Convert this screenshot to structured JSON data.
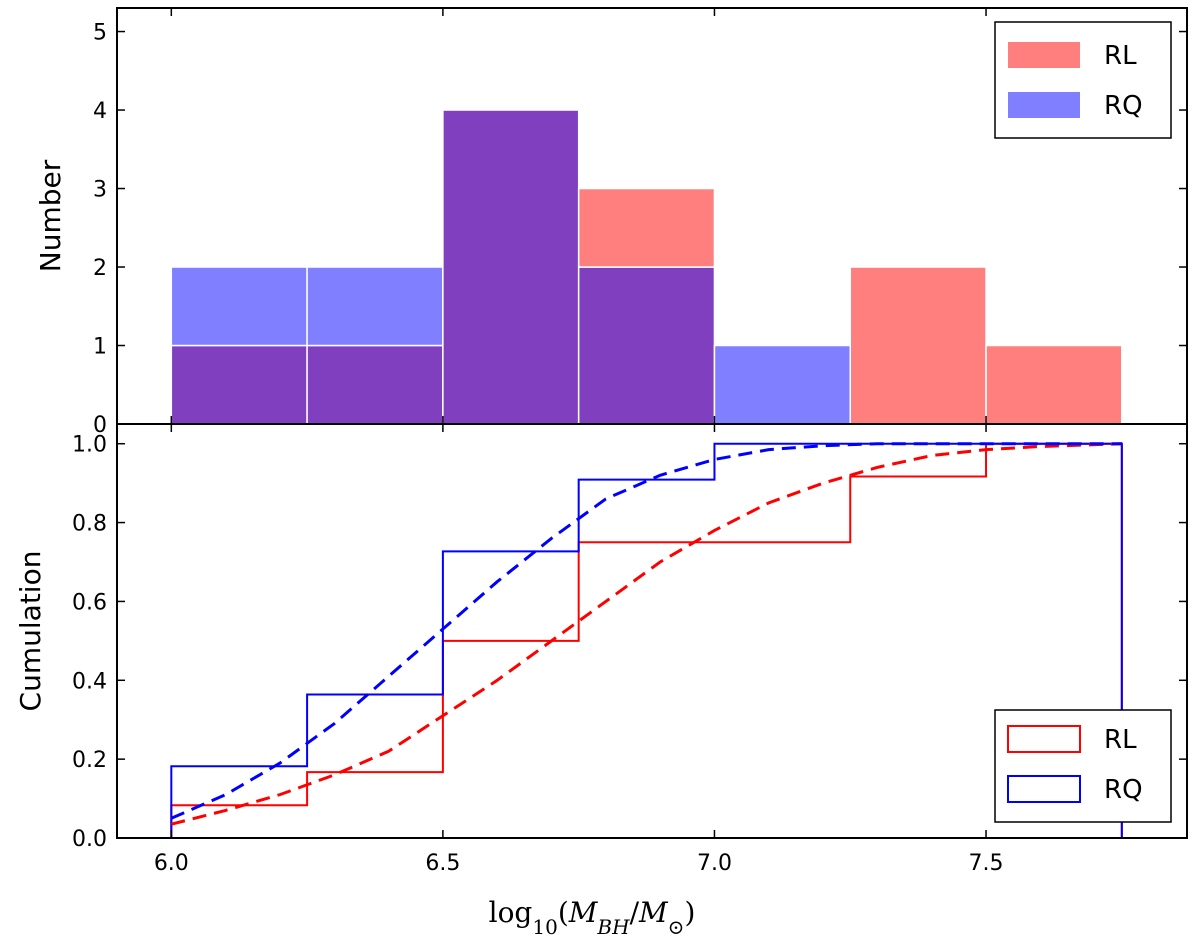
{
  "chart_data": [
    {
      "type": "bar",
      "panel": "top",
      "ylabel": "Number",
      "xlim": [
        5.9,
        7.87
      ],
      "ylim": [
        0,
        5.3
      ],
      "yticks": [
        "0",
        "1",
        "2",
        "3",
        "4",
        "5"
      ],
      "bin_edges": [
        6.0,
        6.25,
        6.5,
        6.75,
        7.0,
        7.25,
        7.5,
        7.75
      ],
      "series": [
        {
          "name": "RL",
          "color": "#ff7f7f",
          "values": [
            1,
            1,
            4,
            3,
            0,
            2,
            1
          ]
        },
        {
          "name": "RQ",
          "color": "#7f7fff",
          "values": [
            2,
            2,
            4,
            2,
            1,
            0,
            0
          ]
        }
      ],
      "overlap_color": "#7f3fbf",
      "legend": {
        "location": "top-right",
        "entries": [
          "RL",
          "RQ"
        ]
      }
    },
    {
      "type": "line",
      "panel": "bottom",
      "ylabel": "Cumulation",
      "xlabel": "log10(MBH/M⊙)",
      "xlim": [
        5.9,
        7.87
      ],
      "ylim": [
        0,
        1.05
      ],
      "xticks": [
        "6.0",
        "6.5",
        "7.0",
        "7.5"
      ],
      "yticks": [
        "0.0",
        "0.2",
        "0.4",
        "0.6",
        "0.8",
        "1.0"
      ],
      "series": [
        {
          "name": "RL",
          "color": "#ff0000",
          "style": "step",
          "bin_edges": [
            6.0,
            6.25,
            6.5,
            6.75,
            7.0,
            7.25,
            7.5,
            7.75
          ],
          "values": [
            0.083,
            0.167,
            0.5,
            0.75,
            0.75,
            0.917,
            1.0
          ]
        },
        {
          "name": "RQ",
          "color": "#0000ff",
          "style": "step",
          "bin_edges": [
            6.0,
            6.25,
            6.5,
            6.75,
            7.0,
            7.25,
            7.5,
            7.75
          ],
          "values": [
            0.182,
            0.364,
            0.727,
            0.909,
            1.0,
            1.0,
            1.0
          ]
        },
        {
          "name": "RL fit",
          "color": "#ff0000",
          "style": "dashed",
          "x": [
            6.0,
            6.1,
            6.2,
            6.3,
            6.4,
            6.5,
            6.6,
            6.7,
            6.8,
            6.9,
            7.0,
            7.1,
            7.2,
            7.3,
            7.4,
            7.5,
            7.6,
            7.75
          ],
          "y": [
            0.035,
            0.07,
            0.11,
            0.16,
            0.22,
            0.31,
            0.4,
            0.5,
            0.6,
            0.7,
            0.78,
            0.85,
            0.9,
            0.94,
            0.97,
            0.985,
            0.993,
            1.0
          ]
        },
        {
          "name": "RQ fit",
          "color": "#0000ff",
          "style": "dashed",
          "x": [
            6.0,
            6.1,
            6.2,
            6.3,
            6.4,
            6.5,
            6.6,
            6.7,
            6.8,
            6.9,
            7.0,
            7.1,
            7.2,
            7.3,
            7.4,
            7.5,
            7.75
          ],
          "y": [
            0.05,
            0.11,
            0.19,
            0.29,
            0.41,
            0.53,
            0.65,
            0.76,
            0.86,
            0.92,
            0.96,
            0.985,
            0.995,
            1.0,
            1.0,
            1.0,
            1.0
          ]
        }
      ],
      "legend": {
        "location": "bottom-right",
        "entries": [
          "RL",
          "RQ"
        ]
      }
    }
  ]
}
